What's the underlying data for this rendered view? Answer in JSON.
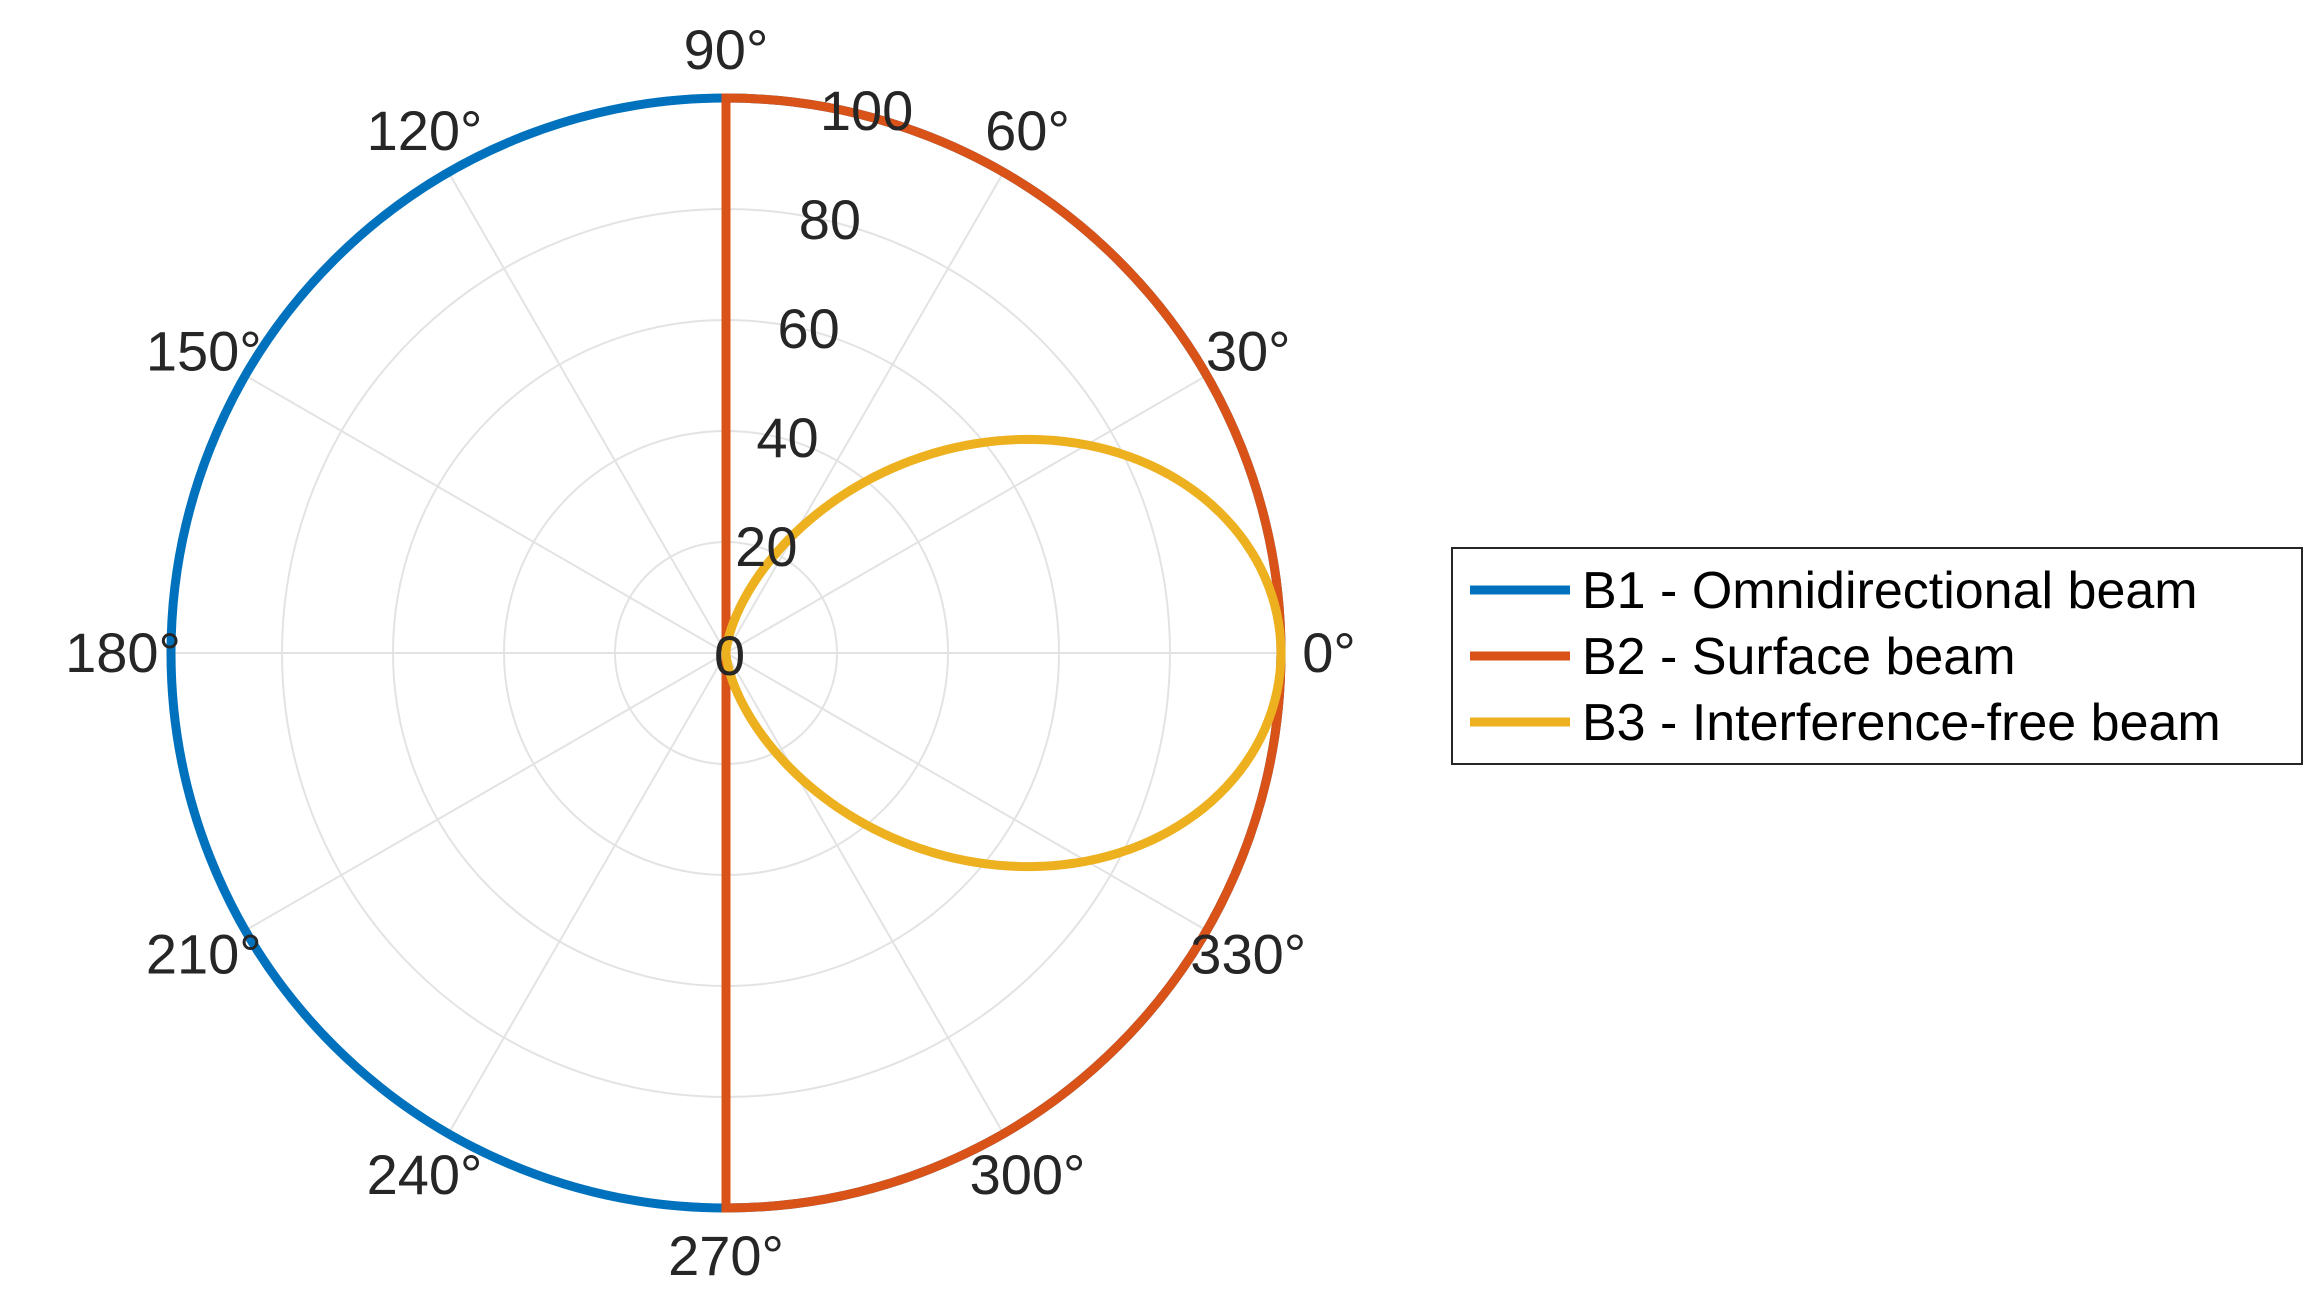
{
  "chart_data": {
    "type": "polar-line",
    "title": "",
    "theta_unit": "degrees",
    "theta_ticks": [
      0,
      30,
      60,
      90,
      120,
      150,
      180,
      210,
      240,
      270,
      300,
      330
    ],
    "theta_tick_labels": [
      "0°",
      "30°",
      "60°",
      "90°",
      "120°",
      "150°",
      "180°",
      "210°",
      "240°",
      "270°",
      "300°",
      "330°"
    ],
    "r_ticks": [
      0,
      20,
      40,
      60,
      80,
      100
    ],
    "r_tick_labels": [
      "0",
      "20",
      "40",
      "60",
      "80",
      "100"
    ],
    "rlim": [
      0,
      100
    ],
    "grid": true,
    "legend_position": "right",
    "series": [
      {
        "name": "B1 - Omnidirectional beam",
        "color": "#0072BD",
        "description_type": "constant",
        "points": [
          [
            0,
            100
          ],
          [
            30,
            100
          ],
          [
            60,
            100
          ],
          [
            90,
            100
          ],
          [
            120,
            100
          ],
          [
            150,
            100
          ],
          [
            180,
            100
          ],
          [
            210,
            100
          ],
          [
            240,
            100
          ],
          [
            270,
            100
          ],
          [
            300,
            100
          ],
          [
            330,
            100
          ],
          [
            360,
            100
          ]
        ]
      },
      {
        "name": "B2 - Surface beam",
        "color": "#D95319",
        "points": [
          [
            -90,
            100
          ],
          [
            -60,
            100
          ],
          [
            -30,
            100
          ],
          [
            0,
            100
          ],
          [
            30,
            100
          ],
          [
            60,
            100
          ],
          [
            90,
            100
          ]
        ]
      },
      {
        "name": "B3 - Interference-free beam",
        "color": "#EDB120",
        "points": [
          [
            -90,
            0
          ],
          [
            -75,
            6.7
          ],
          [
            -60,
            25
          ],
          [
            -45,
            50
          ],
          [
            -30,
            75
          ],
          [
            -15,
            93.3
          ],
          [
            0,
            100
          ],
          [
            15,
            93.3
          ],
          [
            30,
            75
          ],
          [
            45,
            50
          ],
          [
            60,
            25
          ],
          [
            75,
            6.7
          ],
          [
            90,
            0
          ]
        ]
      }
    ]
  },
  "legend": {
    "items": [
      {
        "label": "B1 - Omnidirectional beam",
        "color": "#0072BD"
      },
      {
        "label": "B2 - Surface beam",
        "color": "#D95319"
      },
      {
        "label": "B3 - Interference-free beam",
        "color": "#EDB120"
      }
    ]
  }
}
